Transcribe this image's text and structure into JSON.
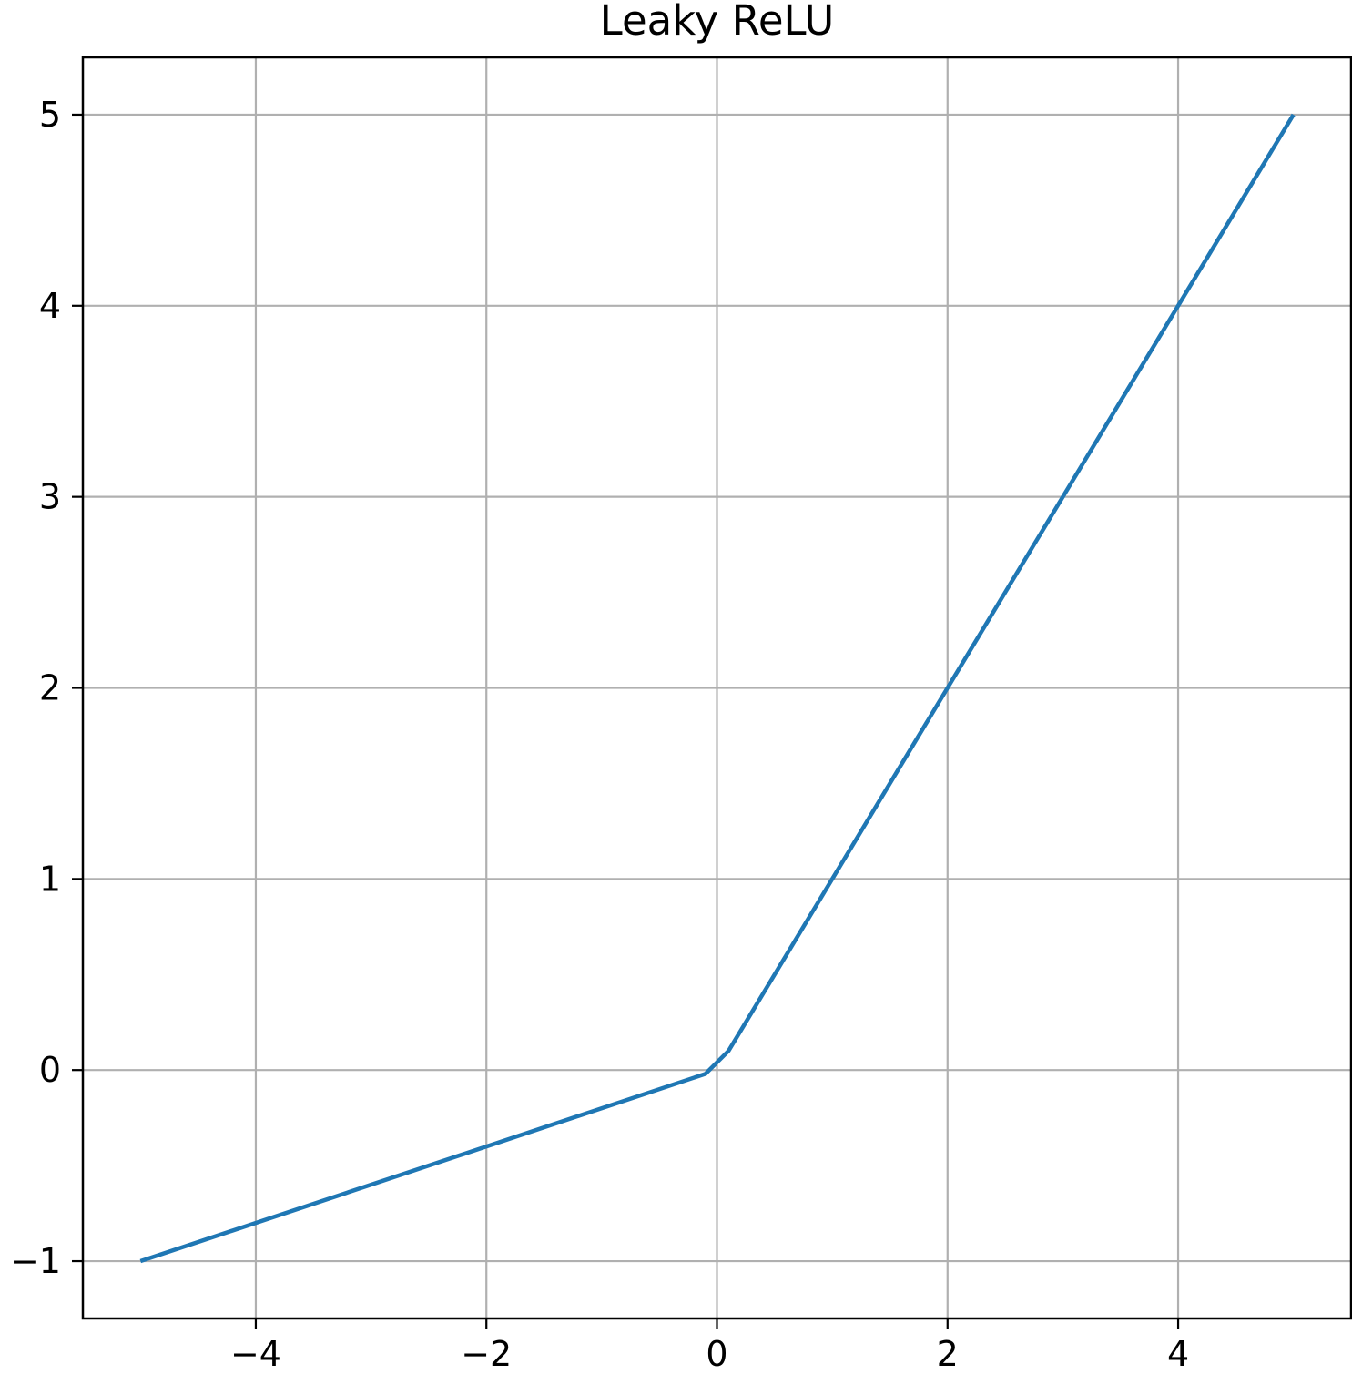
{
  "chart_data": {
    "type": "line",
    "title": "Leaky ReLU",
    "xlabel": "",
    "ylabel": "",
    "xlim": [
      -5.5,
      5.5
    ],
    "ylim": [
      -1.3,
      5.3
    ],
    "grid": true,
    "xticks": [
      -4,
      -2,
      0,
      2,
      4
    ],
    "xtick_labels": [
      "−4",
      "−2",
      "0",
      "2",
      "4"
    ],
    "yticks": [
      -1,
      0,
      1,
      2,
      3,
      4,
      5
    ],
    "ytick_labels": [
      "−1",
      "0",
      "1",
      "2",
      "3",
      "4",
      "5"
    ],
    "series": [
      {
        "color": "#1f77b4",
        "x": [
          -5,
          -0.1,
          0.1,
          5
        ],
        "y": [
          -1,
          -0.02,
          0.1,
          5
        ]
      }
    ]
  },
  "colors": {
    "grid": "#b0b0b0",
    "axes": "#000000",
    "background": "#ffffff"
  }
}
